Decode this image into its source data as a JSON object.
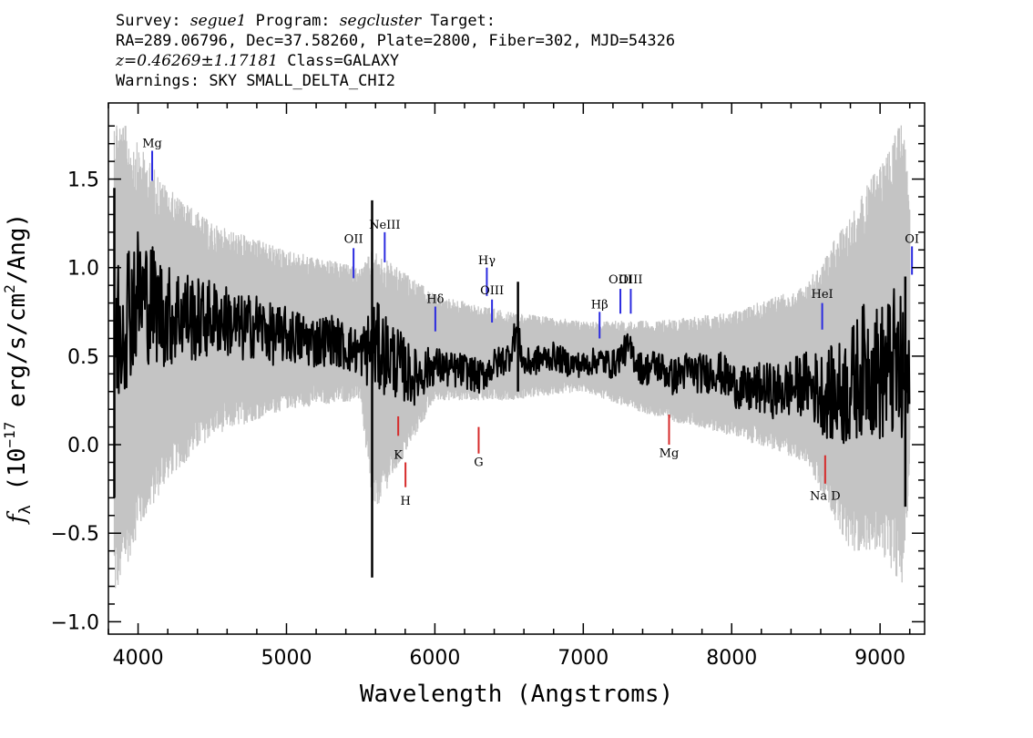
{
  "header": {
    "survey_label": "Survey:",
    "survey": "segue1",
    "program_label": "Program:",
    "program": "segcluster",
    "target_label": "Target:",
    "line2": "RA=289.06796, Dec=37.58260, Plate=2800, Fiber=302, MJD=54326",
    "redshift": "z=0.46269±1.17181",
    "class": "Class=GALAXY",
    "warnings": "Warnings: SKY SMALL_DELTA_CHI2"
  },
  "chart_data": {
    "type": "line",
    "xlabel": "Wavelength (Angstroms)",
    "ylabel_prefix": "f",
    "ylabel_sub": "λ",
    "ylabel_rest": " (10",
    "ylabel_exp": "−17",
    "ylabel_units": " erg/s/cm",
    "ylabel_exp2": "2",
    "ylabel_end": "/Ang)",
    "xlim": [
      3800,
      9300
    ],
    "ylim": [
      -1.07,
      1.93
    ],
    "x_ticks": [
      4000,
      5000,
      6000,
      7000,
      8000,
      9000
    ],
    "y_ticks": [
      -1.0,
      -0.5,
      0.0,
      0.5,
      1.0,
      1.5
    ],
    "y_tick_labels": [
      "−1.0",
      "−0.5",
      "0.0",
      "0.5",
      "1.0",
      "1.5"
    ],
    "grid": false,
    "series": [
      {
        "color": "#c4c4c4",
        "role": "error envelope",
        "x": [
          3840,
          4000,
          4200,
          4500,
          5000,
          5500,
          5580,
          6000,
          6500,
          7000,
          7500,
          8000,
          8500,
          8800,
          9000,
          9150,
          9200
        ],
        "y_low": [
          -0.9,
          -0.5,
          -0.2,
          0.05,
          0.2,
          0.25,
          -0.4,
          0.25,
          0.25,
          0.3,
          0.15,
          0.05,
          -0.1,
          -0.6,
          -0.6,
          -0.8,
          -0.2
        ],
        "y_high": [
          1.9,
          1.7,
          1.45,
          1.25,
          1.1,
          1.0,
          1.1,
          0.85,
          0.75,
          0.7,
          0.7,
          0.75,
          0.9,
          1.3,
          1.6,
          1.85,
          1.4
        ]
      },
      {
        "color": "#000000",
        "role": "flux",
        "x": [
          3850,
          3900,
          4000,
          4100,
          4200,
          4300,
          4400,
          4500,
          4600,
          4700,
          4800,
          4900,
          5000,
          5100,
          5200,
          5300,
          5400,
          5500,
          5600,
          5700,
          5800,
          5850,
          5900,
          6000,
          6100,
          6200,
          6300,
          6400,
          6500,
          6550,
          6600,
          6700,
          6800,
          6900,
          7000,
          7100,
          7200,
          7300,
          7400,
          7500,
          7600,
          7700,
          7800,
          7900,
          8000,
          8100,
          8200,
          8300,
          8400,
          8500,
          8600,
          8700,
          8800,
          8900,
          9000,
          9100,
          9150,
          9200
        ],
        "y": [
          0.6,
          0.75,
          0.85,
          0.8,
          0.72,
          0.75,
          0.7,
          0.72,
          0.7,
          0.65,
          0.68,
          0.62,
          0.62,
          0.6,
          0.58,
          0.6,
          0.55,
          0.52,
          0.55,
          0.5,
          0.42,
          0.38,
          0.4,
          0.45,
          0.42,
          0.42,
          0.38,
          0.45,
          0.5,
          0.65,
          0.45,
          0.48,
          0.5,
          0.46,
          0.45,
          0.48,
          0.45,
          0.55,
          0.42,
          0.45,
          0.38,
          0.42,
          0.4,
          0.42,
          0.35,
          0.3,
          0.32,
          0.3,
          0.32,
          0.35,
          0.3,
          0.28,
          0.32,
          0.45,
          0.4,
          0.45,
          0.35,
          0.3
        ],
        "spikes": [
          {
            "x": 5577,
            "low": -0.75,
            "high": 1.38
          },
          {
            "x": 3840,
            "low": -0.3,
            "high": 1.45
          },
          {
            "x": 9170,
            "low": -0.35,
            "high": 0.95
          },
          {
            "x": 6560,
            "low": 0.3,
            "high": 0.92
          }
        ]
      }
    ],
    "emission_lines": [
      {
        "label": "Mg",
        "x": 4095,
        "y_bot": 1.49,
        "y_top": 1.66,
        "label_y": 1.68
      },
      {
        "label": "OII",
        "x": 5452,
        "y_bot": 0.94,
        "y_top": 1.11,
        "label_y": 1.14
      },
      {
        "label": "NeIII",
        "x": 5662,
        "y_bot": 1.03,
        "y_top": 1.2,
        "label_y": 1.22
      },
      {
        "label": "Hδ",
        "x": 6003,
        "y_bot": 0.64,
        "y_top": 0.78,
        "label_y": 0.8
      },
      {
        "label": "Hγ",
        "x": 6350,
        "y_bot": 0.84,
        "y_top": 1.0,
        "label_y": 1.02
      },
      {
        "label": "OIII",
        "x": 6385,
        "y_bot": 0.69,
        "y_top": 0.82,
        "label_y": 0.85
      },
      {
        "label": "Hβ",
        "x": 7110,
        "y_bot": 0.6,
        "y_top": 0.75,
        "label_y": 0.77
      },
      {
        "label": "OIII",
        "x": 7250,
        "y_bot": 0.74,
        "y_top": 0.88,
        "label_y": 0.91
      },
      {
        "label": "OIII",
        "x": 7320,
        "y_bot": 0.74,
        "y_top": 0.88,
        "label_y": 0.91
      },
      {
        "label": "HeI",
        "x": 8610,
        "y_bot": 0.65,
        "y_top": 0.8,
        "label_y": 0.83
      },
      {
        "label": "OI",
        "x": 9215,
        "y_bot": 0.96,
        "y_top": 1.12,
        "label_y": 1.14
      }
    ],
    "absorption_lines": [
      {
        "label": "K",
        "x": 5753,
        "y_bot": 0.05,
        "y_top": 0.16,
        "label_y": -0.08
      },
      {
        "label": "H",
        "x": 5802,
        "y_bot": -0.24,
        "y_top": -0.1,
        "label_y": -0.34
      },
      {
        "label": "G",
        "x": 6295,
        "y_bot": -0.05,
        "y_top": 0.1,
        "label_y": -0.12
      },
      {
        "label": "Mg",
        "x": 7578,
        "y_bot": 0.0,
        "y_top": 0.17,
        "label_y": -0.07
      },
      {
        "label": "Na D",
        "x": 8630,
        "y_bot": -0.22,
        "y_top": -0.06,
        "label_y": -0.31
      }
    ],
    "colors": {
      "emission": "#2b2be0",
      "absorption": "#d62a2a",
      "error": "#c4c4c4",
      "flux": "#000000"
    }
  }
}
